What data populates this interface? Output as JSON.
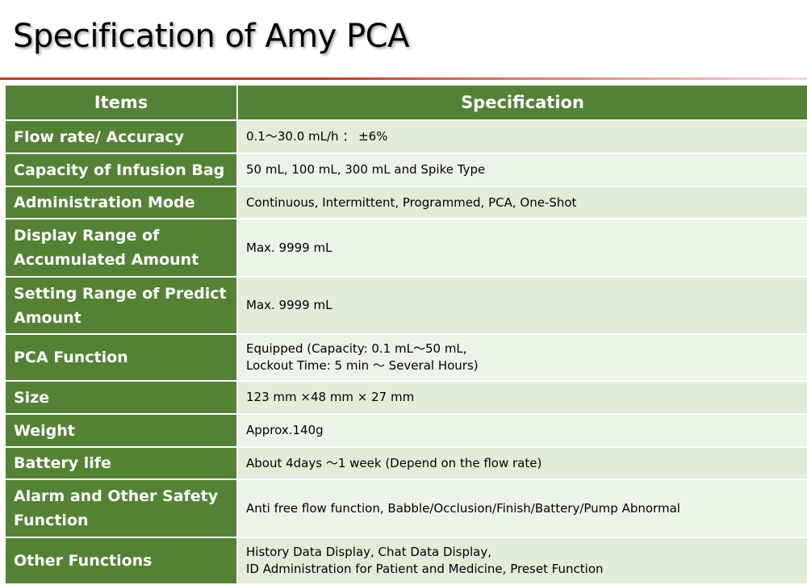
{
  "title": "Specification of Amy PCA",
  "table": {
    "headers": [
      "Items",
      "Specification"
    ],
    "rows": [
      {
        "item": "Flow rate/ Accuracy",
        "spec": "0.1～30.0 mL/h ： ±6%"
      },
      {
        "item": "Capacity of Infusion Bag",
        "spec": "50 mL, 100 mL, 300 mL and Spike Type"
      },
      {
        "item": "Administration Mode",
        "spec": "Continuous, Intermittent, Programmed, PCA, One-Shot"
      },
      {
        "item": "Display Range of Accumulated Amount",
        "spec": "Max. 9999 mL"
      },
      {
        "item": "Setting Range of Predict Amount",
        "spec": "Max. 9999 mL"
      },
      {
        "item": "PCA Function",
        "spec": "Equipped (Capacity: 0.1 mL～50 mL,\nLockout Time: 5 min ～ Several Hours)"
      },
      {
        "item": "Size",
        "spec": "123 mm ×48 mm × 27 mm"
      },
      {
        "item": "Weight",
        "spec": "Approx.140g"
      },
      {
        "item": "Battery life",
        "spec": "About 4days ～1 week  (Depend on the flow rate)"
      },
      {
        "item": "Alarm and Other Safety Function",
        "spec": "Anti free flow function, Babble/Occlusion/Finish/Battery/Pump Abnormal"
      },
      {
        "item": "Other Functions",
        "spec": "History Data Display, Chat Data Display,\nID Administration for Patient and Medicine, Preset Function"
      }
    ]
  },
  "colors": {
    "header_bg": "#538135",
    "item_bg": "#548235",
    "row_odd_bg": "#e2ecd9",
    "row_even_bg": "#eef3ea",
    "title_rule": "#c0392b"
  }
}
